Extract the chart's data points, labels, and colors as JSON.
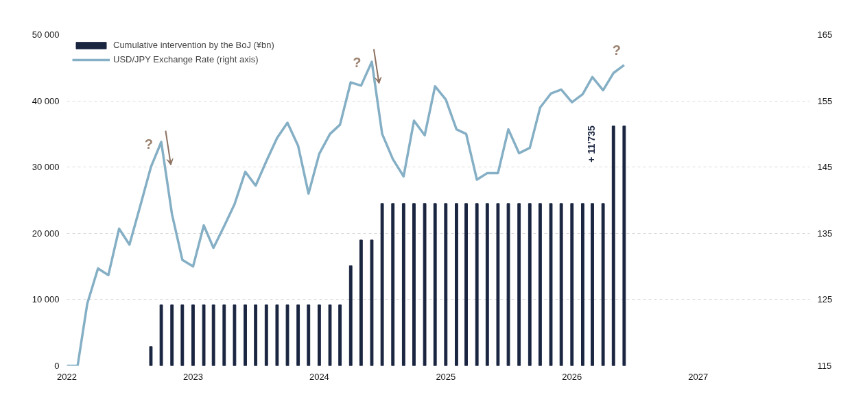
{
  "chart_data": {
    "type": "bar",
    "x": [
      "2022-09",
      "2022-10",
      "2022-11",
      "2022-12",
      "2023-01",
      "2023-02",
      "2023-03",
      "2023-04",
      "2023-05",
      "2023-06",
      "2023-07",
      "2023-08",
      "2023-09",
      "2023-10",
      "2023-11",
      "2023-12",
      "2024-01",
      "2024-02",
      "2024-03",
      "2024-04",
      "2024-05",
      "2024-06",
      "2024-07",
      "2024-08",
      "2024-09",
      "2024-10",
      "2024-11",
      "2024-12",
      "2025-01",
      "2025-02",
      "2025-03",
      "2025-04",
      "2025-05",
      "2025-06",
      "2025-07",
      "2025-08",
      "2025-09",
      "2025-10",
      "2025-11",
      "2025-12",
      "2026-01",
      "2026-02",
      "2026-03",
      "2026-04",
      "2026-05",
      "2026-06"
    ],
    "series": [
      {
        "name": "Cumulative intervention by the BoJ (¥bn)",
        "color": "#1a2540",
        "values": [
          2900,
          9200,
          9200,
          9200,
          9200,
          9200,
          9200,
          9200,
          9200,
          9200,
          9200,
          9200,
          9200,
          9200,
          9200,
          9200,
          9200,
          9200,
          9200,
          15100,
          19000,
          19000,
          24500,
          24500,
          24500,
          24500,
          24500,
          24500,
          24500,
          24500,
          24500,
          24500,
          24500,
          24500,
          24500,
          24500,
          24500,
          24500,
          24500,
          24500,
          24500,
          24500,
          24500,
          24500,
          36200,
          36200
        ]
      },
      {
        "name": "USD/JPY Exchange Rate (right axis)",
        "type": "line",
        "axis": "y2",
        "color": "#85afc5",
        "x": [
          "2022-01",
          "2022-02",
          "2022-03",
          "2022-04",
          "2022-05",
          "2022-06",
          "2022-07",
          "2022-08",
          "2022-09",
          "2022-10",
          "2022-11",
          "2022-12",
          "2023-01",
          "2023-02",
          "2023-03",
          "2023-04",
          "2023-05",
          "2023-06",
          "2023-07",
          "2023-08",
          "2023-09",
          "2023-10",
          "2023-11",
          "2023-12",
          "2024-01",
          "2024-02",
          "2024-03",
          "2024-04",
          "2024-05",
          "2024-06",
          "2024-07",
          "2024-08",
          "2024-09",
          "2024-10",
          "2024-11",
          "2024-12",
          "2025-01",
          "2025-02",
          "2025-03",
          "2025-04",
          "2025-05",
          "2025-06",
          "2025-07",
          "2025-08",
          "2025-09",
          "2025-10",
          "2025-11",
          "2025-12",
          "2026-01",
          "2026-02",
          "2026-03",
          "2026-04",
          "2026-05",
          "2026-06"
        ],
        "values": [
          115.0,
          115.0,
          124.4,
          129.7,
          128.7,
          135.7,
          133.3,
          139.1,
          145.0,
          148.8,
          137.9,
          131.0,
          130.0,
          136.2,
          132.8,
          136.1,
          139.4,
          144.3,
          142.2,
          145.9,
          149.4,
          151.7,
          148.2,
          141.0,
          147.0,
          150.0,
          151.4,
          157.8,
          157.3,
          160.9,
          150.0,
          146.2,
          143.6,
          152.0,
          149.8,
          157.2,
          155.2,
          150.7,
          150.0,
          143.1,
          144.1,
          144.1,
          150.7,
          147.1,
          147.9,
          154.0,
          156.1,
          156.7,
          154.8,
          156.0,
          158.6,
          156.6,
          159.2,
          160.4
        ]
      }
    ],
    "xlim": [
      "2022-01-01",
      "2027-11-20"
    ],
    "xticks": [
      {
        "value": "2022",
        "label": "2022"
      },
      {
        "value": "2023",
        "label": "2023"
      },
      {
        "value": "2024",
        "label": "2024"
      },
      {
        "value": "2025",
        "label": "2025"
      },
      {
        "value": "2026",
        "label": "2026"
      },
      {
        "value": "2027",
        "label": "2027"
      }
    ],
    "ylim": [
      0,
      50000
    ],
    "yticks": [
      0,
      {
        "value": 10000,
        "label": "10 000"
      },
      {
        "value": 20000,
        "label": "20 000"
      },
      {
        "value": 30000,
        "label": "30 000"
      },
      {
        "value": 40000,
        "label": "40 000"
      },
      {
        "value": 50000,
        "label": "50 000"
      }
    ],
    "y2lim": [
      115,
      165
    ],
    "y2ticks": [
      115,
      125,
      135,
      145,
      155,
      165
    ],
    "grid": "y",
    "legend": "top left",
    "annotations": [
      "?",
      "?",
      "?",
      "+ 11'735"
    ]
  }
}
